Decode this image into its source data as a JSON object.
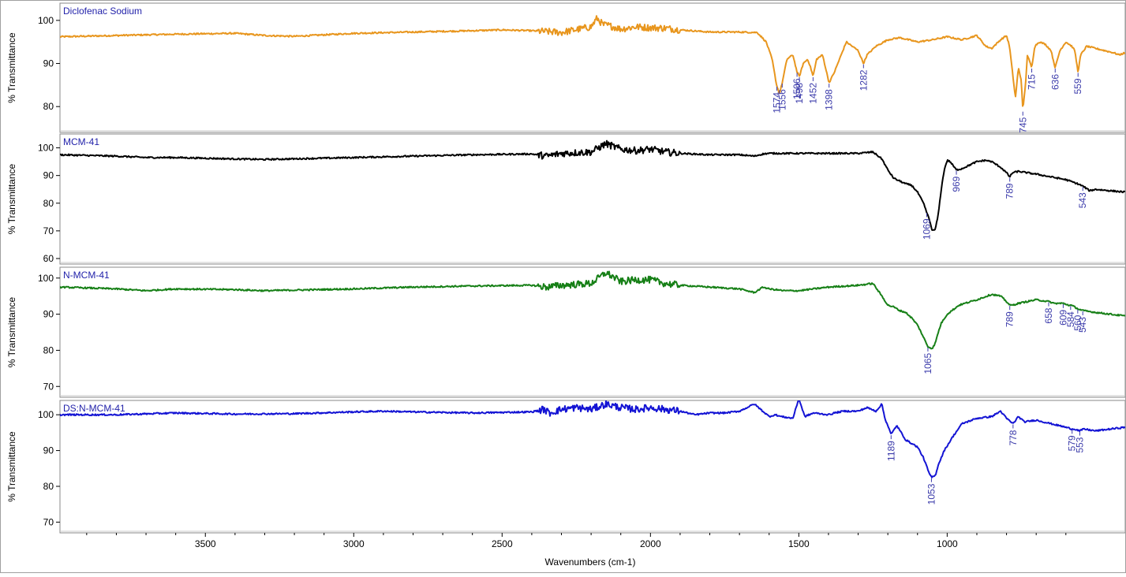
{
  "chart_data": {
    "type": "line",
    "xlabel": "Wavenumbers (cm-1)",
    "xlim": [
      3990,
      400
    ],
    "x_ticks": [
      3500,
      3000,
      2500,
      2000,
      1500,
      1000
    ],
    "grid": false,
    "panels": [
      {
        "title": "Diclofenac Sodium",
        "ylabel": "% Transmittance",
        "color": "#e8961e",
        "ylim": [
          74,
          104
        ],
        "y_ticks": [
          100,
          90,
          80
        ],
        "series": {
          "x": [
            3990,
            3800,
            3600,
            3400,
            3300,
            3200,
            3000,
            2800,
            2600,
            2500,
            2400,
            2300,
            2200,
            2180,
            2160,
            2140,
            2100,
            2050,
            2000,
            1950,
            1900,
            1800,
            1700,
            1640,
            1610,
            1590,
            1575,
            1565,
            1556,
            1540,
            1520,
            1506,
            1498,
            1485,
            1470,
            1460,
            1452,
            1440,
            1420,
            1398,
            1380,
            1340,
            1300,
            1282,
            1270,
            1240,
            1200,
            1160,
            1100,
            1050,
            1000,
            950,
            900,
            870,
            850,
            820,
            800,
            790,
            780,
            770,
            760,
            750,
            745,
            735,
            730,
            715,
            705,
            690,
            670,
            650,
            636,
            620,
            600,
            580,
            570,
            559,
            550,
            530,
            500,
            470,
            440,
            420,
            400
          ],
          "y": [
            96.2,
            96.5,
            96.8,
            97.0,
            96.5,
            96.3,
            97.0,
            97.3,
            97.6,
            97.8,
            97.6,
            97.2,
            98.5,
            100.5,
            99.0,
            98.8,
            98.0,
            98.5,
            98.3,
            98.2,
            97.8,
            97.3,
            97.3,
            97.2,
            95.0,
            91.0,
            85.0,
            83.0,
            85.5,
            91.0,
            92.0,
            88.0,
            87.0,
            90.0,
            91.0,
            89.0,
            87.0,
            91.0,
            92.0,
            85.5,
            88.0,
            95.0,
            93.0,
            90.0,
            92.0,
            94.0,
            95.5,
            96.0,
            95.0,
            95.5,
            96.2,
            95.5,
            96.5,
            94.0,
            93.5,
            95.5,
            96.5,
            94.0,
            88.0,
            82.0,
            89.0,
            86.0,
            79.0,
            86.0,
            92.0,
            89.0,
            94.0,
            95.0,
            94.5,
            93.0,
            89.0,
            93.0,
            95.0,
            94.0,
            93.0,
            88.0,
            92.0,
            94.0,
            93.5,
            93.0,
            92.5,
            92.0,
            92.5
          ]
        },
        "peak_labels": [
          "1574",
          "1556",
          "1506",
          "1498",
          "1452",
          "1398",
          "1282",
          "745",
          "715",
          "636",
          "559"
        ],
        "peak_positions": [
          1574,
          1556,
          1506,
          1498,
          1452,
          1398,
          1282,
          745,
          715,
          636,
          559
        ]
      },
      {
        "title": "MCM-41",
        "ylabel": "% Transmittance",
        "color": "#000000",
        "ylim": [
          58,
          105
        ],
        "y_ticks": [
          100,
          90,
          80,
          70,
          60
        ],
        "series": {
          "x": [
            3990,
            3800,
            3700,
            3600,
            3400,
            3300,
            3000,
            2800,
            2600,
            2400,
            2350,
            2300,
            2200,
            2150,
            2100,
            2050,
            2000,
            1950,
            1900,
            1800,
            1700,
            1650,
            1620,
            1600,
            1500,
            1400,
            1300,
            1250,
            1220,
            1200,
            1180,
            1160,
            1140,
            1120,
            1100,
            1080,
            1060,
            1050,
            1040,
            1030,
            1020,
            1010,
            1000,
            990,
            969,
            950,
            930,
            900,
            870,
            850,
            820,
            800,
            789,
            780,
            760,
            700,
            650,
            600,
            560,
            540,
            520,
            500,
            450,
            400
          ],
          "y": [
            97.5,
            97.0,
            96.5,
            96.5,
            96.0,
            95.8,
            96.5,
            97.0,
            97.5,
            97.8,
            97.0,
            98.0,
            98.5,
            101.5,
            99.5,
            99.0,
            99.5,
            98.5,
            98.0,
            97.5,
            97.5,
            97.0,
            97.8,
            98.0,
            98.0,
            98.0,
            98.0,
            98.5,
            96.0,
            92.0,
            89.0,
            88.0,
            87.0,
            86.5,
            84.0,
            80.0,
            74.0,
            70.0,
            70.5,
            76.0,
            85.0,
            92.0,
            95.5,
            95.0,
            92.0,
            92.5,
            93.5,
            95.0,
            95.5,
            95.0,
            93.0,
            91.0,
            89.5,
            91.0,
            91.5,
            90.5,
            89.5,
            88.5,
            87.0,
            86.0,
            84.5,
            85.0,
            84.5,
            84.0
          ]
        },
        "peak_labels": [
          "1069",
          "969",
          "789",
          "543"
        ],
        "peak_positions": [
          1069,
          969,
          789,
          543
        ]
      },
      {
        "title": "N-MCM-41",
        "ylabel": "% Transmittance",
        "color": "#178017",
        "ylim": [
          67,
          103
        ],
        "y_ticks": [
          100,
          90,
          80,
          70
        ],
        "series": {
          "x": [
            3990,
            3800,
            3700,
            3600,
            3400,
            3300,
            3000,
            2800,
            2600,
            2400,
            2350,
            2300,
            2200,
            2150,
            2100,
            2050,
            2000,
            1950,
            1900,
            1800,
            1700,
            1650,
            1620,
            1600,
            1550,
            1500,
            1400,
            1300,
            1250,
            1220,
            1200,
            1180,
            1160,
            1140,
            1120,
            1100,
            1085,
            1065,
            1050,
            1040,
            1030,
            1020,
            1000,
            960,
            900,
            850,
            820,
            800,
            789,
            780,
            760,
            700,
            658,
            640,
            609,
            590,
            584,
            570,
            560,
            543,
            500,
            450,
            400
          ],
          "y": [
            97.5,
            97.0,
            96.5,
            97.0,
            96.8,
            96.5,
            97.0,
            97.5,
            97.8,
            98.0,
            97.5,
            98.0,
            98.5,
            101.5,
            99.0,
            99.5,
            99.5,
            98.5,
            98.0,
            97.5,
            97.0,
            96.0,
            97.5,
            97.0,
            96.5,
            96.5,
            97.5,
            98.0,
            98.5,
            95.0,
            92.5,
            92.0,
            91.0,
            90.5,
            89.0,
            87.0,
            84.5,
            81.0,
            80.5,
            82.0,
            85.0,
            87.5,
            90.0,
            92.5,
            94.0,
            95.5,
            95.0,
            93.5,
            92.5,
            92.5,
            93.0,
            94.0,
            93.5,
            93.0,
            93.0,
            92.5,
            92.5,
            92.0,
            91.5,
            91.0,
            90.5,
            90.0,
            89.5
          ]
        },
        "peak_labels": [
          "1065",
          "789",
          "658",
          "609",
          "584",
          "560",
          "543"
        ],
        "peak_positions": [
          1065,
          789,
          658,
          609,
          584,
          560,
          543
        ]
      },
      {
        "title": "DS:N-MCM-41",
        "ylabel": "% Transmittance",
        "color": "#1414d4",
        "ylim": [
          67,
          104
        ],
        "y_ticks": [
          100,
          90,
          80,
          70
        ],
        "series": {
          "x": [
            3990,
            3800,
            3600,
            3400,
            3200,
            3000,
            2900,
            2800,
            2600,
            2400,
            2360,
            2340,
            2300,
            2250,
            2200,
            2150,
            2100,
            2050,
            2000,
            1950,
            1900,
            1850,
            1800,
            1750,
            1700,
            1650,
            1600,
            1580,
            1560,
            1520,
            1500,
            1480,
            1450,
            1400,
            1380,
            1350,
            1300,
            1270,
            1240,
            1220,
            1210,
            1200,
            1189,
            1170,
            1140,
            1100,
            1080,
            1060,
            1053,
            1040,
            1030,
            1010,
            980,
            950,
            900,
            850,
            820,
            800,
            778,
            760,
            740,
            700,
            650,
            600,
            579,
            570,
            553,
            540,
            500,
            450,
            400
          ],
          "y": [
            100.0,
            100.0,
            100.5,
            100.2,
            100.3,
            100.8,
            101.0,
            100.8,
            100.5,
            100.8,
            101.5,
            100.5,
            101.5,
            102.0,
            101.5,
            103.0,
            102.0,
            101.5,
            102.0,
            101.5,
            101.0,
            100.0,
            100.5,
            100.5,
            101.0,
            103.0,
            99.5,
            100.0,
            99.5,
            99.0,
            104.5,
            99.5,
            100.5,
            100.0,
            100.5,
            101.0,
            101.0,
            102.0,
            101.0,
            103.0,
            99.0,
            97.0,
            94.5,
            97.0,
            93.0,
            91.0,
            88.0,
            83.5,
            82.5,
            83.0,
            86.0,
            90.0,
            94.0,
            97.5,
            99.0,
            99.5,
            101.0,
            99.0,
            97.5,
            99.5,
            98.0,
            98.5,
            97.5,
            96.5,
            96.0,
            96.0,
            95.5,
            96.0,
            95.5,
            96.0,
            96.5
          ]
        },
        "peak_labels": [
          "1189",
          "1053",
          "778",
          "579",
          "553"
        ],
        "peak_positions": [
          1189,
          1053,
          778,
          579,
          553
        ]
      }
    ]
  }
}
